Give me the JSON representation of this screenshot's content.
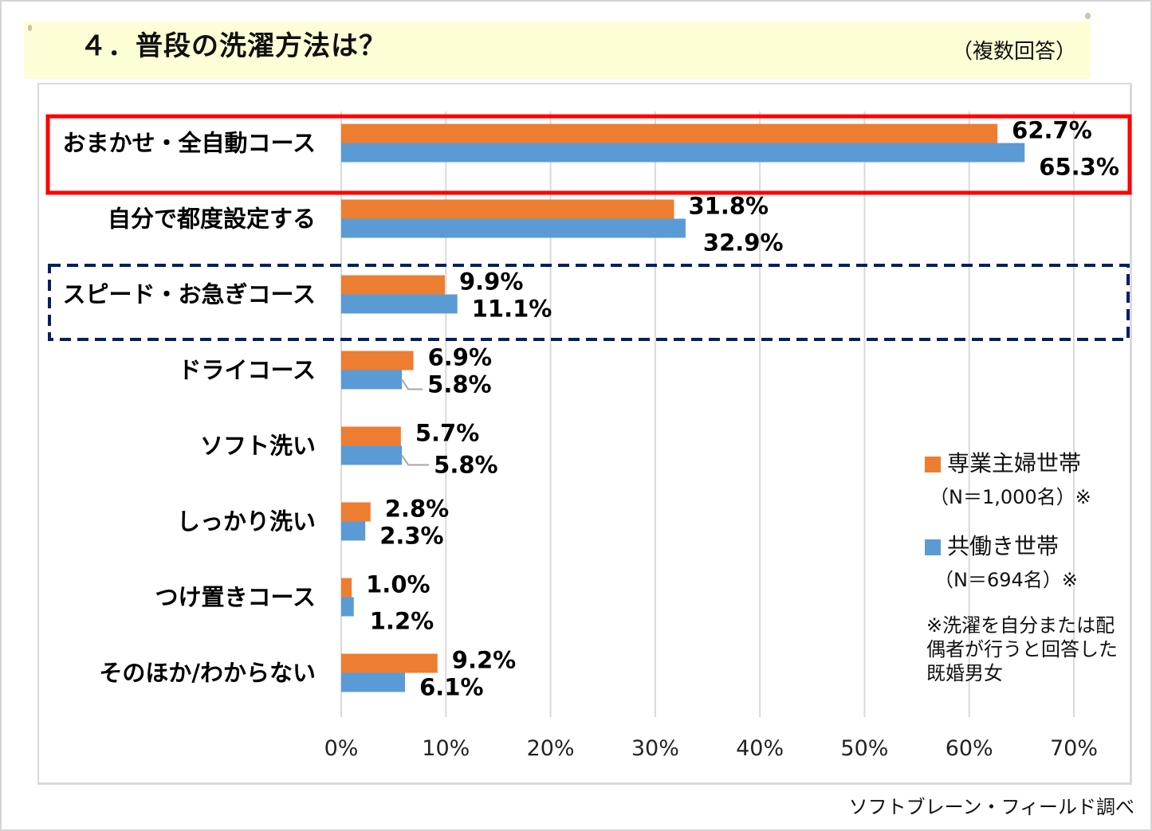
{
  "header": {
    "title": "４．普段の洗濯方法は？",
    "subtitle": "（複数回答）"
  },
  "legend": {
    "items": [
      {
        "label": "専業主婦世帯",
        "sample": "（N＝1,000名）※",
        "color": "#ed7d31"
      },
      {
        "label": "共働き世帯",
        "sample": "（N＝694名）※",
        "color": "#5b9bd5"
      }
    ],
    "note": "※洗濯を自分または配偶者が行うと回答した既婚男女"
  },
  "source": "ソフトブレーン・フィールド調べ",
  "highlights": {
    "solid_red_box_category": "おまかせ・全自動コース",
    "dashed_navy_box_category": "スピード・お急ぎコース",
    "solid_color": "#ff0000",
    "dashed_color": "#002060"
  },
  "chart_data": {
    "type": "bar",
    "orientation": "horizontal",
    "title": "４．普段の洗濯方法は？",
    "subtitle": "（複数回答）",
    "xlabel": "",
    "ylabel": "",
    "xlim": [
      0,
      70
    ],
    "x_ticks": [
      "0%",
      "10%",
      "20%",
      "30%",
      "40%",
      "50%",
      "60%",
      "70%"
    ],
    "grid": true,
    "legend_position": "right",
    "categories": [
      "おまかせ・全自動コース",
      "自分で都度設定する",
      "スピード・お急ぎコース",
      "ドライコース",
      "ソフト洗い",
      "しっかり洗い",
      "つけ置きコース",
      "そのほか/わからない"
    ],
    "series": [
      {
        "name": "専業主婦世帯（N＝1,000名）",
        "color": "#ed7d31",
        "values": [
          62.7,
          31.8,
          9.9,
          6.9,
          5.7,
          2.8,
          1.0,
          9.2
        ],
        "labels": [
          "62.7%",
          "31.8%",
          "9.9%",
          "6.9%",
          "5.7%",
          "2.8%",
          "1.0%",
          "9.2%"
        ]
      },
      {
        "name": "共働き世帯（N＝694名）",
        "color": "#5b9bd5",
        "values": [
          65.3,
          32.9,
          11.1,
          5.8,
          5.8,
          2.3,
          1.2,
          6.1
        ],
        "labels": [
          "65.3%",
          "32.9%",
          "11.1%",
          "5.8%",
          "5.8%",
          "2.3%",
          "1.2%",
          "6.1%"
        ]
      }
    ]
  }
}
